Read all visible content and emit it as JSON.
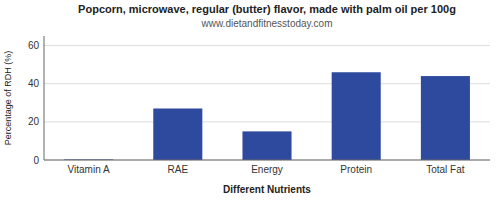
{
  "chart_data": {
    "type": "bar",
    "title": "Popcorn, microwave, regular (butter) flavor, made with palm oil per 100g",
    "subtitle": "www.dietandfitnesstoday.com",
    "categories": [
      "Vitamin A",
      "RAE",
      "Energy",
      "Protein",
      "Total Fat"
    ],
    "values": [
      0.3,
      27,
      15,
      46,
      44
    ],
    "color": "#2e4a9e",
    "xlabel": "Different Nutrients",
    "ylabel": "Percentage of RDH (%)",
    "ylim": [
      0,
      65
    ],
    "yticks": [
      0,
      20,
      40,
      60
    ],
    "grid": true
  }
}
